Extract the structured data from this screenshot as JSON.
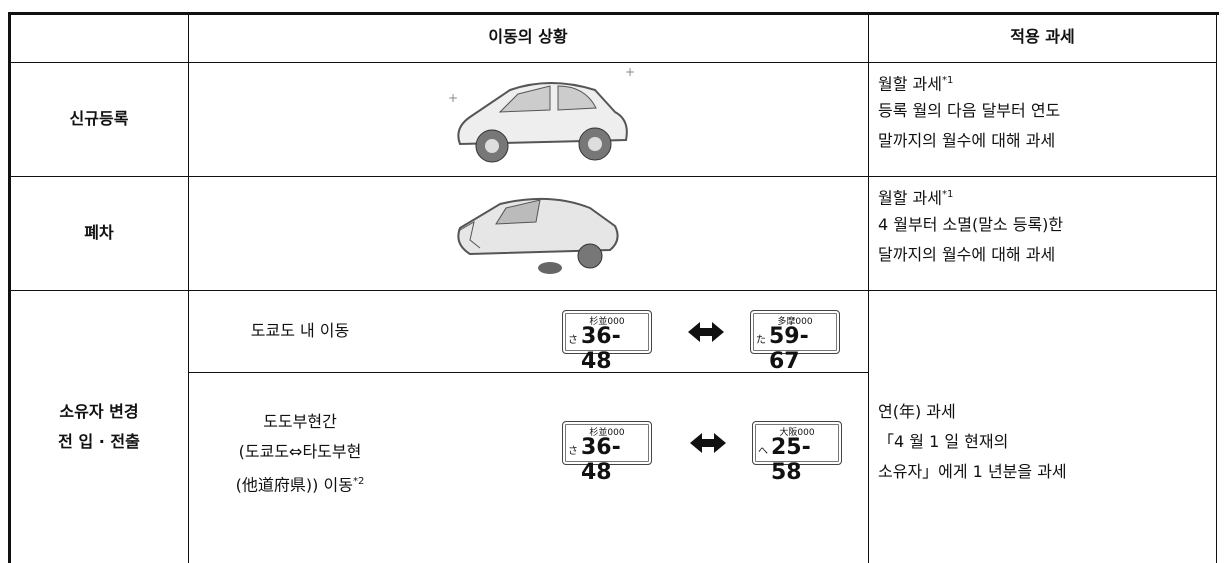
{
  "header": {
    "situation": "이동의 상황",
    "tax": "적용 과세"
  },
  "rows": [
    {
      "label": "신규등록",
      "tax_title": "월할 과세",
      "tax_note": "*1",
      "tax_lines": [
        "등록 월의 다음 달부터 연도",
        "말까지의 월수에 대해 과세"
      ]
    },
    {
      "label": "폐차",
      "tax_title": "월할 과세",
      "tax_note": "*1",
      "tax_lines": [
        "4 월부터 소멸(말소 등록)한",
        "달까지의 월수에 대해 과세"
      ]
    },
    {
      "label_lines": [
        "소유자 변경",
        "전 입 · 전출"
      ],
      "sub_rows": [
        {
          "text_lines": [
            "도쿄도 내 이동"
          ],
          "plates": [
            {
              "region": "杉並000",
              "kana": "さ",
              "number": "36-48"
            },
            {
              "region": "多摩000",
              "kana": "た",
              "number": "59-67"
            }
          ]
        },
        {
          "text_lines": [
            "도도부현간",
            "(도쿄도⇔타도부현",
            "(他道府県)) 이동"
          ],
          "note": "*2",
          "plates": [
            {
              "region": "杉並000",
              "kana": "さ",
              "number": "36-48"
            },
            {
              "region": "大阪000",
              "kana": "へ",
              "number": "25-58"
            }
          ]
        }
      ],
      "tax_lines": [
        "연(年) 과세",
        "「4 월 1 일 현재의",
        "소유자」에게 1 년분을 과세"
      ]
    }
  ]
}
